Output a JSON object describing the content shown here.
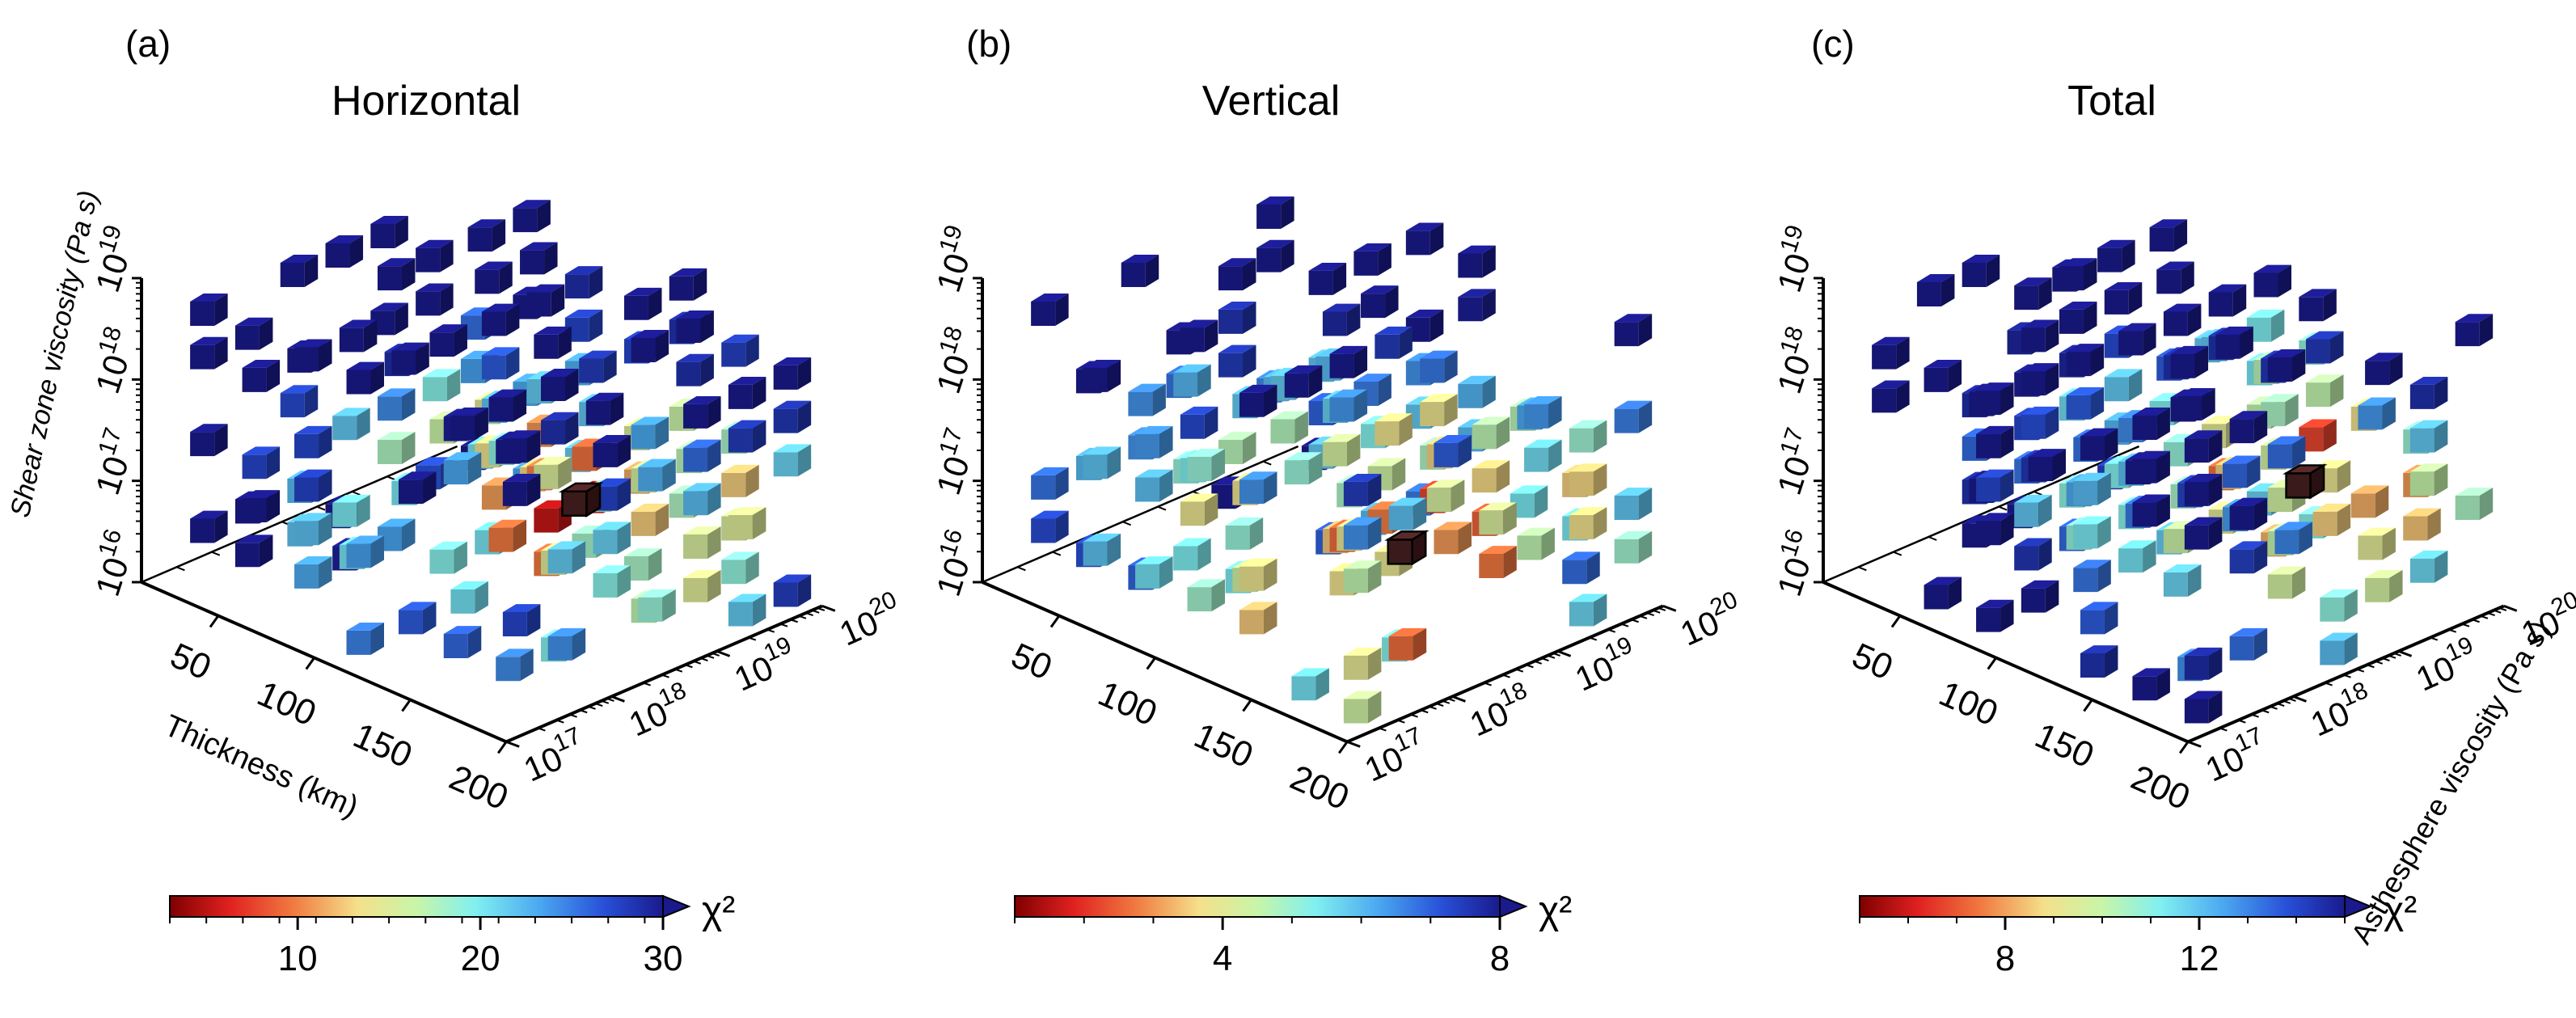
{
  "figure": {
    "panels": [
      {
        "label": "(a)",
        "title": "Horizontal",
        "colorbar": {
          "ticks": [
            10,
            20,
            30
          ],
          "vmin": 3,
          "vmax": 30,
          "symbol": "χ²"
        },
        "best_fit": {
          "thickness_km": 125,
          "shear_zone_viscosity_exp": 17,
          "asthenosphere_viscosity_exp": 18.9
        }
      },
      {
        "label": "(b)",
        "title": "Vertical",
        "colorbar": {
          "ticks": [
            4,
            8
          ],
          "vmin": 1,
          "vmax": 8,
          "symbol": "χ²"
        },
        "best_fit": {
          "thickness_km": 150,
          "shear_zone_viscosity_exp": 17,
          "asthenosphere_viscosity_exp": 18.3
        }
      },
      {
        "label": "(c)",
        "title": "Total",
        "colorbar": {
          "ticks": [
            8,
            12
          ],
          "vmin": 5,
          "vmax": 15,
          "symbol": "χ²"
        },
        "best_fit": {
          "thickness_km": 125,
          "shear_zone_viscosity_exp": 17,
          "asthenosphere_viscosity_exp": 19.3
        }
      }
    ],
    "axes": {
      "thickness": {
        "label": "Thickness (km)",
        "ticks": [
          "50",
          "100",
          "150",
          "200"
        ]
      },
      "shear": {
        "label": "Shear zone viscosity (Pa s)",
        "ticks_exp": [
          "16",
          "17",
          "18",
          "19"
        ]
      },
      "asthenosphere": {
        "label": "Asthesphere viscosity (Pa s)",
        "ticks_exp": [
          "17",
          "18",
          "19",
          "20"
        ]
      }
    }
  },
  "chart_data": [
    {
      "type": "scatter",
      "title": "Horizontal",
      "xlabel": "Thickness (km)",
      "ylabel": "Asthesphere viscosity (Pa s)",
      "zlabel": "Shear zone viscosity (Pa s)",
      "xlim": [
        10,
        200
      ],
      "ylim_log10": [
        17,
        20
      ],
      "zlim_log10": [
        16,
        19
      ],
      "note_values": "chi-squared colour range",
      "colormap": [
        "#7f0000",
        "#e02020",
        "#f07a40",
        "#f5e08a",
        "#c8f5a8",
        "#80f0f0",
        "#4aa8f0",
        "#2850d8",
        "#1a1a8c"
      ],
      "color_range": [
        3,
        30
      ]
    },
    {
      "type": "scatter",
      "title": "Vertical",
      "xlabel": "Thickness (km)",
      "ylabel": "Asthesphere viscosity (Pa s)",
      "zlabel": "Shear zone viscosity (Pa s)",
      "xlim": [
        10,
        200
      ],
      "ylim_log10": [
        17,
        20
      ],
      "zlim_log10": [
        16,
        19
      ],
      "colormap": [
        "#7f0000",
        "#e02020",
        "#f07a40",
        "#f5e08a",
        "#c8f5a8",
        "#80f0f0",
        "#4aa8f0",
        "#2850d8",
        "#1a1a8c"
      ],
      "color_range": [
        1,
        8
      ]
    },
    {
      "type": "scatter",
      "title": "Total",
      "xlabel": "Thickness (km)",
      "ylabel": "Asthesphere viscosity (Pa s)",
      "zlabel": "Shear zone viscosity (Pa s)",
      "xlim": [
        10,
        200
      ],
      "ylim_log10": [
        17,
        20
      ],
      "zlim_log10": [
        16,
        19
      ],
      "colormap": [
        "#7f0000",
        "#e02020",
        "#f07a40",
        "#f5e08a",
        "#c8f5a8",
        "#80f0f0",
        "#4aa8f0",
        "#2850d8",
        "#1a1a8c"
      ],
      "color_range": [
        5,
        15
      ]
    }
  ],
  "colors": {
    "cube_edge": "#000000",
    "axis": "#000000"
  }
}
